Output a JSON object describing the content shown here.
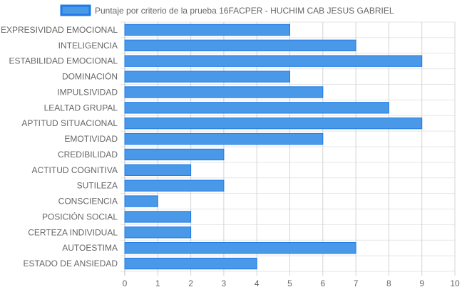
{
  "chart_data": {
    "type": "bar",
    "orientation": "horizontal",
    "categories": [
      "EXPRESIVIDAD EMOCIONAL",
      "INTELIGENCIA",
      "ESTABILIDAD EMOCIONAL",
      "DOMINACIÓN",
      "IMPULSIVIDAD",
      "LEALTAD GRUPAL",
      "APTITUD SITUACIONAL",
      "EMOTIVIDAD",
      "CREDIBILIDAD",
      "ACTITUD COGNITIVA",
      "SUTILEZA",
      "CONSCIENCIA",
      "POSICIÓN SOCIAL",
      "CERTEZA INDIVIDUAL",
      "AUTOESTIMA",
      "ESTADO DE ANSIEDAD"
    ],
    "series": [
      {
        "name": "Puntaje por criterio de la prueba 16FACPER - HUCHIM CAB JESUS GABRIEL",
        "values": [
          5,
          7,
          9,
          5,
          6,
          8,
          9,
          6,
          3,
          2,
          3,
          1,
          2,
          2,
          7,
          4
        ],
        "color": "#4a98e8",
        "border_color": "#1e7ae6"
      }
    ],
    "xlim": [
      0,
      10
    ],
    "x_ticks": [
      "0",
      "1",
      "2",
      "3",
      "4",
      "5",
      "6",
      "7",
      "8",
      "9",
      "10"
    ],
    "grid": true,
    "legend_position": "top"
  }
}
